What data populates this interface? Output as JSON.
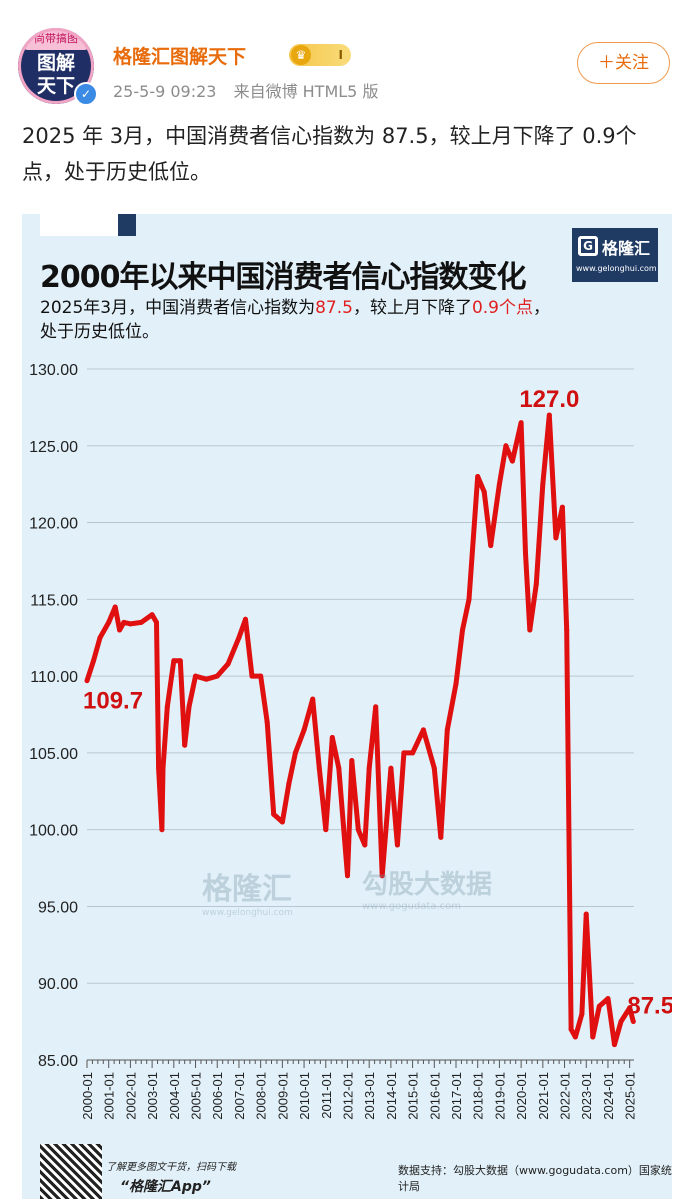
{
  "post": {
    "avatar": {
      "top_text": "尚带搞图",
      "line1": "图解",
      "line2": "天下"
    },
    "username": "格隆汇图解天下",
    "badge_level": "I",
    "date": "25-5-9 09:23",
    "source": "来自微博 HTML5 版",
    "follow_label": "关注",
    "text": "2025 年 3月，中国消费者信心指数为 87.5，较上月下降了 0.9个点，处于历史低位。"
  },
  "figure": {
    "logo_name": "格隆汇",
    "logo_site": "www.gelonghui.com",
    "subtitle_a": "2025年3月，中国消费者信心指数为",
    "subtitle_v1": "87.5",
    "subtitle_b": "，较上月下降了",
    "subtitle_v2": "0.9个点",
    "subtitle_c": "，",
    "subtitle_d": "处于历史低位。",
    "watermark1": "格隆汇",
    "watermark1_site": "www.gelonghui.com",
    "watermark2": "勾股大数据",
    "watermark2_site": "www.gogudata.com",
    "promo_line1": "了解更多图文干货，扫码下载",
    "promo_line2": "“格隆汇App”",
    "source_note": "数据支持：勾股大数据（www.gogudata.com）国家统计局"
  },
  "chart_data": {
    "type": "line",
    "title": "2000年以来中国消费者信心指数变化",
    "xlabel": "",
    "ylabel": "",
    "ylim": [
      85,
      130
    ],
    "yticks": [
      "130.00",
      "125.00",
      "120.00",
      "115.00",
      "110.00",
      "105.00",
      "100.00",
      "95.00",
      "90.00",
      "85.00"
    ],
    "categories": [
      "2000-01",
      "2001-01",
      "2002-01",
      "2003-01",
      "2004-01",
      "2005-01",
      "2006-01",
      "2007-01",
      "2008-01",
      "2009-01",
      "2010-01",
      "2011-01",
      "2012-01",
      "2013-01",
      "2014-01",
      "2015-01",
      "2016-01",
      "2017-01",
      "2018-01",
      "2019-01",
      "2020-01",
      "2021-01",
      "2022-01",
      "2023-01",
      "2024-01",
      "2025-01"
    ],
    "series_color": "#e01010",
    "grid": true,
    "legend": "none",
    "annotations": [
      {
        "text": "109.7",
        "x": 2000.0,
        "y": 109.7
      },
      {
        "text": "127.0",
        "x": 2021.3,
        "y": 127.0
      },
      {
        "text": "87.5",
        "x": 2025.17,
        "y": 87.5
      }
    ],
    "series": [
      {
        "x": [
          2000.0,
          2000.3,
          2000.6,
          2001.0,
          2001.3,
          2001.5,
          2001.7,
          2002.0,
          2002.5,
          2003.0,
          2003.2,
          2003.3,
          2003.45,
          2003.5,
          2003.7,
          2004.0,
          2004.3,
          2004.5,
          2004.7,
          2005.0,
          2005.5,
          2006.0,
          2006.5,
          2007.0,
          2007.3,
          2007.6,
          2008.0,
          2008.3,
          2008.6,
          2009.0,
          2009.3,
          2009.6,
          2010.0,
          2010.4,
          2010.7,
          2011.0,
          2011.3,
          2011.6,
          2012.0,
          2012.2,
          2012.5,
          2012.8,
          2013.0,
          2013.3,
          2013.6,
          2014.0,
          2014.3,
          2014.6,
          2015.0,
          2015.5,
          2016.0,
          2016.3,
          2016.6,
          2017.0,
          2017.3,
          2017.6,
          2018.0,
          2018.3,
          2018.6,
          2019.0,
          2019.3,
          2019.6,
          2020.0,
          2020.2,
          2020.4,
          2020.7,
          2021.0,
          2021.3,
          2021.6,
          2021.9,
          2022.1,
          2022.3,
          2022.5,
          2022.8,
          2023.0,
          2023.3,
          2023.6,
          2024.0,
          2024.3,
          2024.6,
          2025.0,
          2025.17
        ],
        "values": [
          109.7,
          111.0,
          112.5,
          113.5,
          114.5,
          113.0,
          113.5,
          113.4,
          113.5,
          114.0,
          113.5,
          104.0,
          100.0,
          104.0,
          108.0,
          111.0,
          111.0,
          105.5,
          108.0,
          110.0,
          109.8,
          110.0,
          110.8,
          112.5,
          113.7,
          110.0,
          110.0,
          107.0,
          101.0,
          100.5,
          103.0,
          105.0,
          106.5,
          108.5,
          104.0,
          100.0,
          106.0,
          104.0,
          97.0,
          104.5,
          100.0,
          99.0,
          104.0,
          108.0,
          97.0,
          104.0,
          99.0,
          105.0,
          105.0,
          106.5,
          104.0,
          99.5,
          106.5,
          109.5,
          113.0,
          115.0,
          123.0,
          122.0,
          118.5,
          122.5,
          125.0,
          124.0,
          126.5,
          118.0,
          113.0,
          116.0,
          122.5,
          127.0,
          119.0,
          121.0,
          113.0,
          87.0,
          86.5,
          88.0,
          94.5,
          86.5,
          88.5,
          89.0,
          86.0,
          87.5,
          88.4,
          87.5
        ]
      }
    ]
  }
}
